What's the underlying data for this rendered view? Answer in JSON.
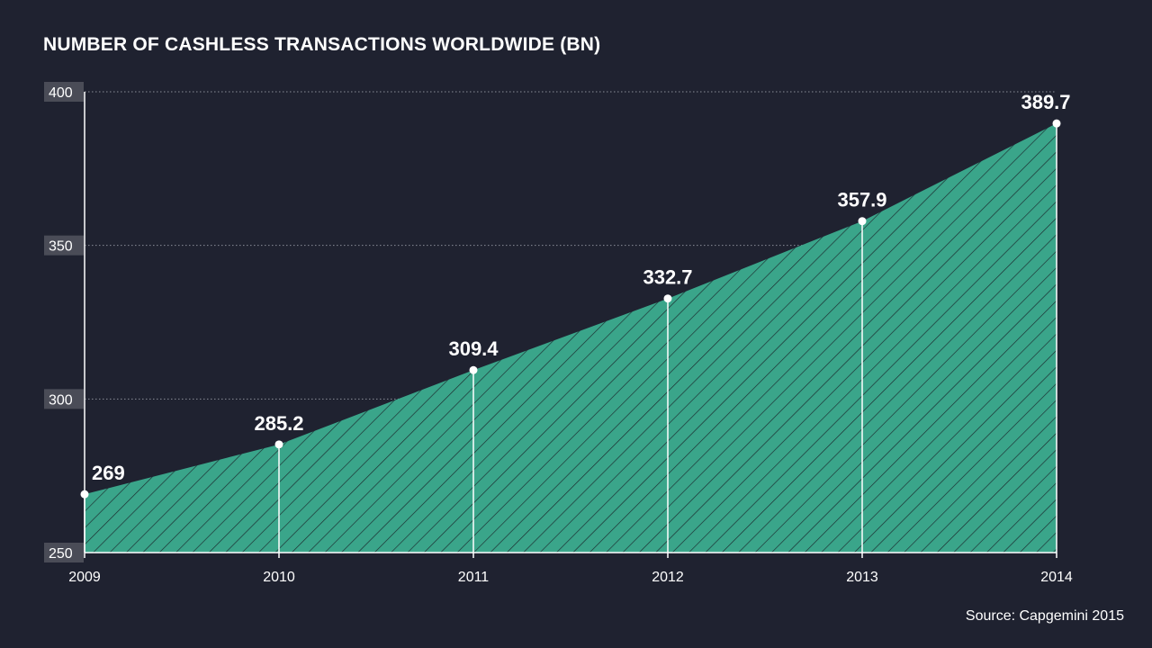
{
  "title": "NUMBER OF CASHLESS TRANSACTIONS WORLDWIDE (BN)",
  "source": "Source: Capgemini 2015",
  "colors": {
    "background": "#1f2230",
    "area_fill": "#3aa58a",
    "hatch": "#1b2a2e",
    "gridline": "#8a8d98",
    "text": "#ffffff",
    "ytick_bg": "#4a4c57"
  },
  "chart_data": {
    "type": "area",
    "title": "NUMBER OF CASHLESS TRANSACTIONS WORLDWIDE (BN)",
    "xlabel": "",
    "ylabel": "",
    "categories": [
      "2009",
      "2010",
      "2011",
      "2012",
      "2013",
      "2014"
    ],
    "values": [
      269,
      285.2,
      309.4,
      332.7,
      357.9,
      389.7
    ],
    "data_labels": [
      "269",
      "285.2",
      "309.4",
      "332.7",
      "357.9",
      "389.7"
    ],
    "yticks": [
      250,
      300,
      350,
      400
    ],
    "ylim": [
      250,
      400
    ],
    "grid": true,
    "fill_pattern": "diagonal-hatch",
    "legend": "none"
  }
}
